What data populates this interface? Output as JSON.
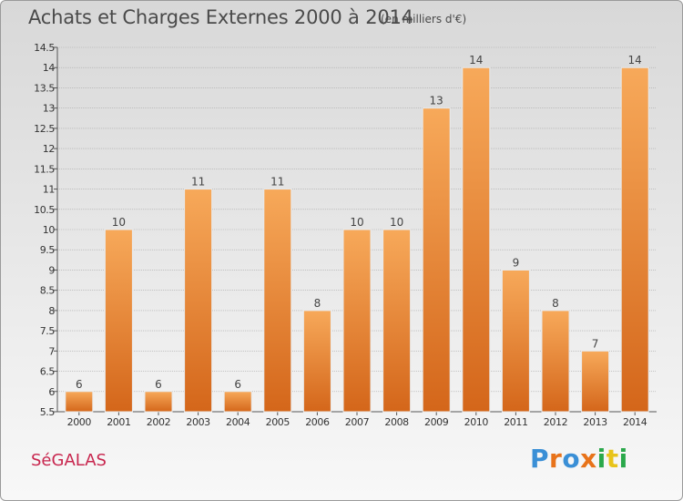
{
  "header": {
    "title": "Achats et Charges Externes 2000 à 2014",
    "unit": "(en milliers d'€)"
  },
  "footer": {
    "commune": "SéGALAS",
    "brand": "Proxiti",
    "brand_colors": [
      "#3a8fd6",
      "#e8731a",
      "#3a8fd6",
      "#e8731a",
      "#2aa84a",
      "#e8c41a",
      "#2aa84a"
    ]
  },
  "colors": {
    "bar_top": "#f7a95a",
    "bar_bottom": "#d4661a",
    "commune": "#c8264e",
    "gridline": "#a8a8a8"
  },
  "chart_data": {
    "type": "bar",
    "title": "Achats et Charges Externes 2000 à 2014",
    "subtitle": "(en milliers d'€)",
    "categories": [
      "2000",
      "2001",
      "2002",
      "2003",
      "2004",
      "2005",
      "2006",
      "2007",
      "2008",
      "2009",
      "2010",
      "2011",
      "2012",
      "2013",
      "2014"
    ],
    "values": [
      6,
      10,
      6,
      11,
      6,
      11,
      8,
      10,
      10,
      13,
      14,
      9,
      8,
      7,
      14
    ],
    "ylim": [
      5.5,
      14.5
    ],
    "yticks": [
      "5.5",
      "6",
      "6.5",
      "7",
      "7.5",
      "8",
      "8.5",
      "9",
      "9.5",
      "10",
      "10.5",
      "11",
      "11.5",
      "12",
      "12.5",
      "13",
      "13.5",
      "14",
      "14.5"
    ],
    "grid": true,
    "legend": "none"
  }
}
